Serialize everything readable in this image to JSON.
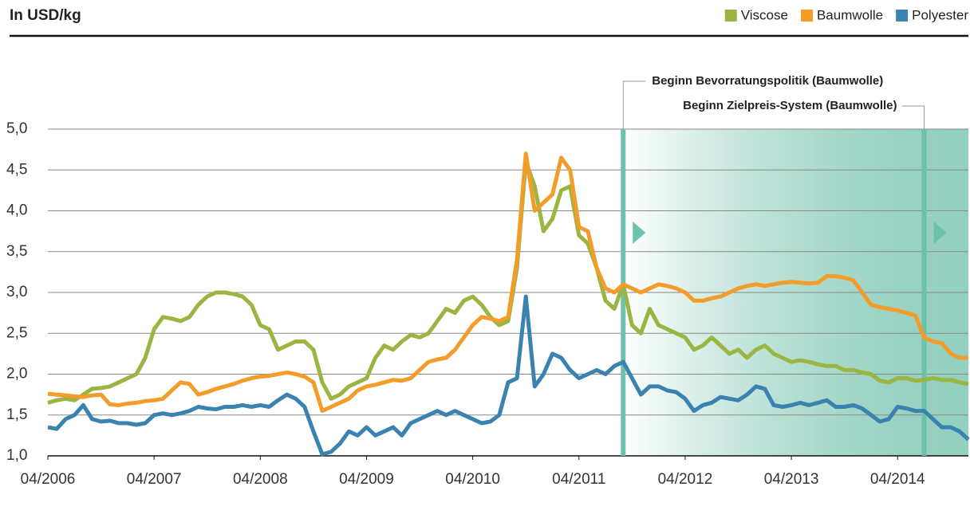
{
  "chart_data": {
    "type": "line",
    "title": "In USD/kg",
    "x": [
      "04/2006",
      "05/2006",
      "06/2006",
      "07/2006",
      "08/2006",
      "09/2006",
      "10/2006",
      "11/2006",
      "12/2006",
      "01/2007",
      "02/2007",
      "03/2007",
      "04/2007",
      "05/2007",
      "06/2007",
      "07/2007",
      "08/2007",
      "09/2007",
      "10/2007",
      "11/2007",
      "12/2007",
      "01/2008",
      "02/2008",
      "03/2008",
      "04/2008",
      "05/2008",
      "06/2008",
      "07/2008",
      "08/2008",
      "09/2008",
      "10/2008",
      "11/2008",
      "12/2008",
      "01/2009",
      "02/2009",
      "03/2009",
      "04/2009",
      "05/2009",
      "06/2009",
      "07/2009",
      "08/2009",
      "09/2009",
      "10/2009",
      "11/2009",
      "12/2009",
      "01/2010",
      "02/2010",
      "03/2010",
      "04/2010",
      "05/2010",
      "06/2010",
      "07/2010",
      "08/2010",
      "09/2010",
      "10/2010",
      "11/2010",
      "12/2010",
      "01/2011",
      "02/2011",
      "03/2011",
      "04/2011",
      "05/2011",
      "06/2011",
      "07/2011",
      "08/2011",
      "09/2011",
      "10/2011",
      "11/2011",
      "12/2011",
      "01/2012",
      "02/2012",
      "03/2012",
      "04/2012",
      "05/2012",
      "06/2012",
      "07/2012",
      "08/2012",
      "09/2012",
      "10/2012",
      "11/2012",
      "12/2012",
      "01/2013",
      "02/2013",
      "03/2013",
      "04/2013",
      "05/2013",
      "06/2013",
      "07/2013",
      "08/2013",
      "09/2013",
      "10/2013",
      "11/2013",
      "12/2013",
      "01/2014",
      "02/2014",
      "03/2014",
      "04/2014",
      "05/2014",
      "06/2014",
      "07/2014",
      "08/2014",
      "09/2014",
      "10/2014",
      "11/2014",
      "12/2014"
    ],
    "xticks": [
      "04/2006",
      "04/2007",
      "04/2008",
      "04/2009",
      "04/2010",
      "04/2011",
      "04/2012",
      "04/2013",
      "04/2014"
    ],
    "ylim": [
      1,
      5
    ],
    "yticks": [
      {
        "value": 1,
        "label": "1,0"
      },
      {
        "value": 1.5,
        "label": "1,5"
      },
      {
        "value": 2,
        "label": "2,0"
      },
      {
        "value": 2.5,
        "label": "2,5"
      },
      {
        "value": 3,
        "label": "3,0"
      },
      {
        "value": 3.5,
        "label": "3,5"
      },
      {
        "value": 4,
        "label": "4,0"
      },
      {
        "value": 4.5,
        "label": "4,5"
      },
      {
        "value": 5,
        "label": "5,0"
      }
    ],
    "grid": true,
    "legend": "top-right",
    "series": [
      {
        "name": "Viscose",
        "color": "#9bb543",
        "values": [
          1.65,
          1.68,
          1.7,
          1.68,
          1.75,
          1.82,
          1.83,
          1.85,
          1.9,
          1.95,
          2.0,
          2.2,
          2.55,
          2.7,
          2.68,
          2.65,
          2.7,
          2.85,
          2.95,
          3.0,
          3.0,
          2.98,
          2.95,
          2.85,
          2.6,
          2.55,
          2.3,
          2.35,
          2.4,
          2.4,
          2.3,
          1.9,
          1.7,
          1.75,
          1.85,
          1.9,
          1.95,
          2.2,
          2.35,
          2.3,
          2.4,
          2.48,
          2.45,
          2.5,
          2.65,
          2.8,
          2.75,
          2.9,
          2.95,
          2.85,
          2.7,
          2.6,
          2.65,
          3.3,
          4.6,
          4.3,
          3.75,
          3.9,
          4.25,
          4.3,
          3.7,
          3.6,
          3.3,
          2.9,
          2.8,
          3.1,
          2.6,
          2.5,
          2.8,
          2.6,
          2.55,
          2.5,
          2.45,
          2.3,
          2.35,
          2.45,
          2.35,
          2.25,
          2.3,
          2.2,
          2.3,
          2.35,
          2.25,
          2.2,
          2.15,
          2.17,
          2.15,
          2.12,
          2.1,
          2.1,
          2.05,
          2.05,
          2.02,
          2.0,
          1.92,
          1.9,
          1.95,
          1.95,
          1.92,
          1.93,
          1.95,
          1.93,
          1.93,
          1.9,
          1.88
        ]
      },
      {
        "name": "Baumwolle",
        "color": "#f39c2a",
        "values": [
          1.76,
          1.75,
          1.74,
          1.73,
          1.72,
          1.74,
          1.75,
          1.63,
          1.62,
          1.64,
          1.65,
          1.67,
          1.68,
          1.7,
          1.8,
          1.9,
          1.88,
          1.75,
          1.78,
          1.82,
          1.85,
          1.88,
          1.92,
          1.95,
          1.97,
          1.98,
          2.0,
          2.02,
          2.0,
          1.97,
          1.9,
          1.55,
          1.6,
          1.65,
          1.7,
          1.8,
          1.85,
          1.87,
          1.9,
          1.93,
          1.92,
          1.95,
          2.05,
          2.15,
          2.18,
          2.2,
          2.3,
          2.45,
          2.6,
          2.7,
          2.68,
          2.65,
          2.7,
          3.4,
          4.7,
          4.0,
          4.1,
          4.2,
          4.65,
          4.5,
          3.8,
          3.75,
          3.3,
          3.05,
          3.0,
          3.1,
          3.05,
          3.0,
          3.05,
          3.1,
          3.08,
          3.05,
          3.0,
          2.9,
          2.9,
          2.93,
          2.95,
          3.0,
          3.05,
          3.08,
          3.1,
          3.08,
          3.1,
          3.12,
          3.13,
          3.12,
          3.11,
          3.12,
          3.2,
          3.2,
          3.18,
          3.15,
          3.0,
          2.85,
          2.82,
          2.8,
          2.78,
          2.75,
          2.72,
          2.45,
          2.4,
          2.38,
          2.25,
          2.2,
          2.2
        ]
      },
      {
        "name": "Polyester",
        "color": "#3a82b0",
        "values": [
          1.35,
          1.33,
          1.45,
          1.5,
          1.62,
          1.45,
          1.42,
          1.43,
          1.4,
          1.4,
          1.38,
          1.4,
          1.5,
          1.52,
          1.5,
          1.52,
          1.55,
          1.6,
          1.58,
          1.57,
          1.6,
          1.6,
          1.62,
          1.6,
          1.62,
          1.6,
          1.68,
          1.75,
          1.7,
          1.6,
          1.3,
          1.02,
          1.05,
          1.15,
          1.3,
          1.25,
          1.35,
          1.25,
          1.3,
          1.35,
          1.25,
          1.4,
          1.45,
          1.5,
          1.55,
          1.5,
          1.55,
          1.5,
          1.45,
          1.4,
          1.42,
          1.5,
          1.9,
          1.95,
          2.95,
          1.85,
          2.0,
          2.25,
          2.2,
          2.05,
          1.95,
          2.0,
          2.05,
          2.0,
          2.1,
          2.15,
          1.95,
          1.75,
          1.85,
          1.85,
          1.8,
          1.78,
          1.7,
          1.55,
          1.62,
          1.65,
          1.72,
          1.7,
          1.68,
          1.75,
          1.85,
          1.82,
          1.62,
          1.6,
          1.62,
          1.65,
          1.62,
          1.65,
          1.68,
          1.6,
          1.6,
          1.62,
          1.58,
          1.5,
          1.42,
          1.45,
          1.6,
          1.58,
          1.55,
          1.55,
          1.45,
          1.35,
          1.35,
          1.3,
          1.2
        ]
      }
    ],
    "annotations": [
      {
        "text": "Beginn Bevorratungspolitik (Baumwolle)",
        "x": "09/2011"
      },
      {
        "text": "Beginn Zielpreis-System (Baumwolle)",
        "x": "07/2014"
      }
    ]
  }
}
